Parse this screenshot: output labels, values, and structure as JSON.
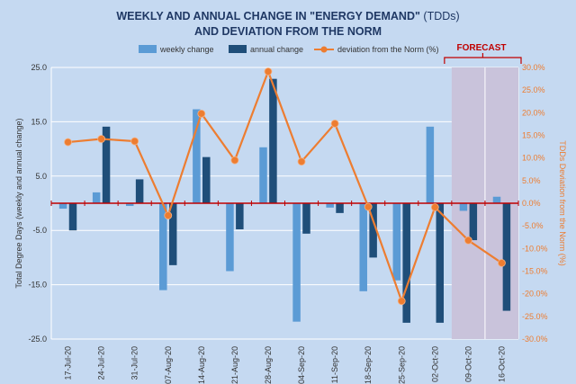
{
  "chart_data": {
    "type": "bar",
    "title_line1": "WEEKLY  AND ANNUAL CHANGE IN \"ENERGY DEMAND\"",
    "title_unit": "(TDDs)",
    "title_line2": "AND DEVIATION FROM THE NORM",
    "ylabel": "Total Degree Days (weekly and annual change)",
    "y2label": "TDDs Deviation from the Norm (%)",
    "forecast_label": "FORECAST",
    "categories": [
      "17-Jul-20",
      "24-Jul-20",
      "31-Jul-20",
      "07-Aug-20",
      "14-Aug-20",
      "21-Aug-20",
      "28-Aug-20",
      "04-Sep-20",
      "11-Sep-20",
      "18-Sep-20",
      "25-Sep-20",
      "02-Oct-20",
      "09-Oct-20",
      "16-Oct-20"
    ],
    "ylim": [
      -25,
      25
    ],
    "yticks": [
      "25.0",
      "15.0",
      "5.0",
      "-5.0",
      "-15.0",
      "-25.0"
    ],
    "yticks_values": [
      25,
      15,
      5,
      -5,
      -15,
      -25
    ],
    "y2lim": [
      -30,
      30
    ],
    "y2ticks": [
      "30.0%",
      "25.0%",
      "20.0%",
      "15.0%",
      "10.0%",
      "5.0%",
      "0.0%",
      "-5.0%",
      "-10.0%",
      "-15.0%",
      "-20.0%",
      "-25.0%",
      "-30.0%"
    ],
    "y2ticks_values": [
      30,
      25,
      20,
      15,
      10,
      5,
      0,
      -5,
      -10,
      -15,
      -20,
      -25,
      -30
    ],
    "series": [
      {
        "name": "weekly change",
        "type": "bar",
        "color": "#5b9bd5",
        "values": [
          -1,
          2,
          -0.5,
          -16,
          17.3,
          -12.5,
          10.3,
          -21.8,
          -0.8,
          -16.2,
          -14.2,
          14.1,
          -1.4,
          1.2
        ]
      },
      {
        "name": "annual change",
        "type": "bar",
        "color": "#1f4e79",
        "values": [
          -5,
          14.1,
          4.4,
          -11.4,
          8.5,
          -4.8,
          22.9,
          -5.6,
          -1.8,
          -10,
          -22,
          -22,
          -6.8,
          -19.8
        ]
      },
      {
        "name": "deviation from the Norm (%)",
        "type": "line",
        "axis": "right",
        "color": "#ed7d31",
        "values": [
          13.5,
          14.2,
          13.7,
          -2.7,
          19.8,
          9.5,
          29.1,
          9.2,
          17.6,
          -0.8,
          -21.6,
          -0.9,
          -8.2,
          -13.2
        ]
      }
    ],
    "forecast_categories": [
      "09-Oct-20",
      "16-Oct-20"
    ],
    "legend_position": "top"
  }
}
